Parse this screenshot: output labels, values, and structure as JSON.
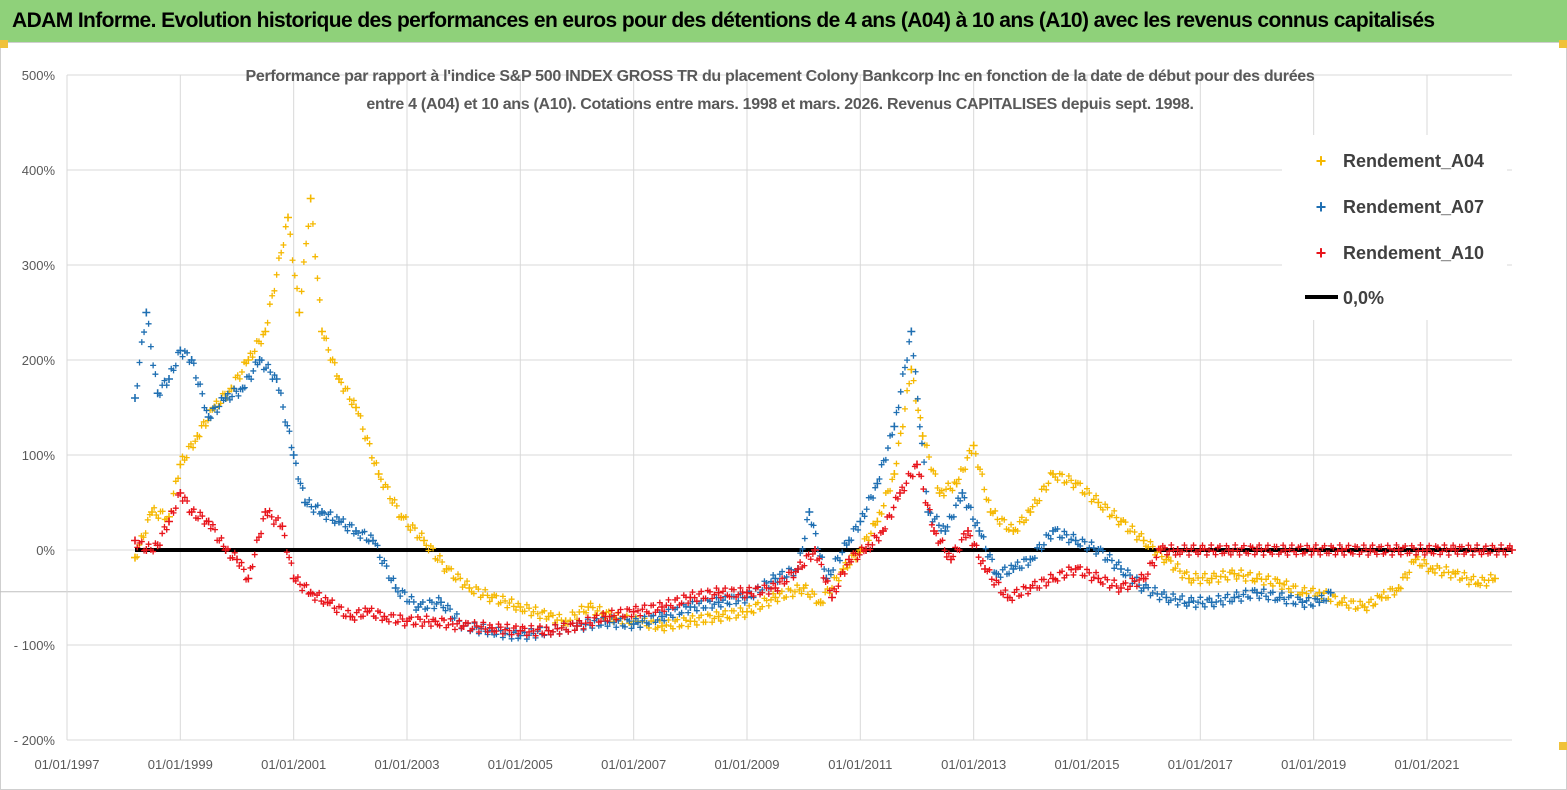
{
  "header": {
    "title": "ADAM Informe. Evolution historique des performances en euros pour des détentions de 4 ans (A04) à 10 ans (A10) avec les revenus connus capitalisés"
  },
  "chart_data": {
    "type": "scatter",
    "title_line1": "Performance par rapport à l'indice S&P 500 INDEX GROSS TR  du placement Colony Bankcorp Inc en fonction de la date de début pour des durées",
    "title_line2": "entre 4 (A04) et 10 ans (A10). Cotations entre mars. 1998 et mars. 2026. Revenus CAPITALISES depuis sept. 1998.",
    "x_ticks": [
      "01/01/1997",
      "01/01/1999",
      "01/01/2001",
      "01/01/2003",
      "01/01/2005",
      "01/01/2007",
      "01/01/2009",
      "01/01/2011",
      "01/01/2013",
      "01/01/2015",
      "01/01/2017",
      "01/01/2019",
      "01/01/2021"
    ],
    "y_ticks": [
      "500%",
      "400%",
      "300%",
      "200%",
      "100%",
      "0%",
      "- 100%",
      "- 200%"
    ],
    "xlim": [
      1997.0,
      2022.5
    ],
    "ylim": [
      -200,
      500
    ],
    "grid": true,
    "legend_position": "top-right",
    "legend": {
      "a04": "Rendement_A04",
      "a07": "Rendement_A07",
      "a10": "Rendement_A10",
      "zero": "0,0%"
    },
    "colors": {
      "a04": "#f5b800",
      "a07": "#1f6fb2",
      "a10": "#e8141b",
      "zero": "#000000"
    },
    "series": [
      {
        "name": "Rendement_A04",
        "x": [
          1998.2,
          1998.5,
          1998.8,
          1999.0,
          1999.3,
          1999.6,
          1999.9,
          2000.2,
          2000.5,
          2000.9,
          2001.1,
          2001.3,
          2001.5,
          2001.8,
          2002.1,
          2002.5,
          2002.9,
          2003.3,
          2003.7,
          2004.1,
          2004.5,
          2005.0,
          2005.5,
          2005.8,
          2006.2,
          2006.6,
          2007.0,
          2007.5,
          2008.0,
          2008.5,
          2009.0,
          2009.5,
          2010.0,
          2010.3,
          2010.7,
          2011.0,
          2011.3,
          2011.6,
          2011.9,
          2012.1,
          2012.4,
          2012.7,
          2013.0,
          2013.3,
          2013.7,
          2014.0,
          2014.4,
          2014.8,
          2015.2,
          2015.6,
          2016.0,
          2016.4,
          2016.8,
          2017.2,
          2017.6,
          2018.0,
          2018.4,
          2018.8,
          2019.1,
          2019.5,
          2019.9,
          2020.2,
          2020.5,
          2020.8,
          2021.1,
          2021.5,
          2021.9,
          2022.2
        ],
        "y": [
          -8,
          40,
          35,
          90,
          120,
          150,
          170,
          200,
          230,
          350,
          250,
          370,
          230,
          180,
          150,
          80,
          35,
          10,
          -20,
          -40,
          -50,
          -60,
          -70,
          -75,
          -60,
          -70,
          -75,
          -80,
          -75,
          -70,
          -65,
          -50,
          -40,
          -55,
          -20,
          0,
          30,
          80,
          190,
          120,
          60,
          70,
          110,
          40,
          20,
          40,
          80,
          70,
          50,
          30,
          10,
          -10,
          -30,
          -30,
          -25,
          -30,
          -35,
          -45,
          -45,
          -55,
          -60,
          -50,
          -40,
          -10,
          -20,
          -25,
          -35,
          -30
        ]
      },
      {
        "name": "Rendement_A07",
        "x": [
          1998.2,
          1998.4,
          1998.6,
          1998.8,
          1999.0,
          1999.2,
          1999.5,
          1999.8,
          2000.1,
          2000.4,
          2000.7,
          2001.0,
          2001.2,
          2001.5,
          2001.8,
          2002.1,
          2002.4,
          2002.8,
          2003.2,
          2003.6,
          2004.0,
          2004.5,
          2005.0,
          2005.5,
          2006.0,
          2006.5,
          2007.0,
          2007.5,
          2008.0,
          2008.5,
          2009.0,
          2009.5,
          2009.9,
          2010.1,
          2010.4,
          2010.8,
          2011.0,
          2011.3,
          2011.6,
          2011.9,
          2012.2,
          2012.5,
          2012.8,
          2013.1,
          2013.4,
          2013.7,
          2014.0,
          2014.4,
          2014.8,
          2015.2,
          2015.6,
          2016.0,
          2016.4,
          2016.8,
          2017.2,
          2017.6,
          2018.0,
          2018.4,
          2018.8,
          2019.1,
          2019.3
        ],
        "y": [
          160,
          250,
          165,
          180,
          210,
          200,
          140,
          160,
          170,
          200,
          180,
          100,
          50,
          40,
          30,
          20,
          10,
          -40,
          -60,
          -55,
          -80,
          -85,
          -90,
          -85,
          -80,
          -75,
          -78,
          -70,
          -60,
          -55,
          -50,
          -30,
          -20,
          40,
          -30,
          10,
          30,
          70,
          130,
          230,
          40,
          20,
          60,
          20,
          -25,
          -20,
          -10,
          20,
          10,
          0,
          -20,
          -40,
          -50,
          -55,
          -55,
          -50,
          -45,
          -50,
          -55,
          -55,
          -45
        ]
      },
      {
        "name": "Rendement_A10",
        "x": [
          1998.2,
          1998.4,
          1998.6,
          1998.8,
          1999.0,
          1999.2,
          1999.5,
          1999.8,
          2000.0,
          2000.2,
          2000.5,
          2000.8,
          2001.0,
          2001.3,
          2001.6,
          2002.0,
          2002.3,
          2002.6,
          2003.0,
          2003.5,
          2004.0,
          2004.5,
          2005.0,
          2005.5,
          2006.0,
          2006.5,
          2007.0,
          2007.5,
          2008.0,
          2008.5,
          2009.0,
          2009.5,
          2009.9,
          2010.2,
          2010.5,
          2010.8,
          2011.1,
          2011.4,
          2011.7,
          2012.0,
          2012.3,
          2012.6,
          2012.9,
          2013.2,
          2013.6,
          2014.0,
          2014.4,
          2014.8,
          2015.2,
          2015.6,
          2016.0,
          2016.3,
          2016.6,
          2017.0,
          2017.5,
          2018.0,
          2018.5,
          2019.0,
          2019.5,
          2020.0,
          2020.5,
          2021.0,
          2021.5,
          2022.0,
          2022.5
        ],
        "y": [
          10,
          0,
          5,
          30,
          60,
          40,
          30,
          0,
          -10,
          -30,
          40,
          25,
          -30,
          -45,
          -55,
          -70,
          -65,
          -70,
          -75,
          -75,
          -80,
          -82,
          -85,
          -85,
          -80,
          -70,
          -65,
          -60,
          -50,
          -45,
          -45,
          -40,
          -20,
          0,
          -50,
          -10,
          0,
          20,
          60,
          90,
          20,
          -10,
          20,
          -20,
          -50,
          -40,
          -30,
          -20,
          -30,
          -40,
          -30,
          0,
          0,
          0,
          0,
          0,
          0,
          0,
          0,
          0,
          0,
          0,
          0,
          0,
          0
        ]
      }
    ]
  }
}
